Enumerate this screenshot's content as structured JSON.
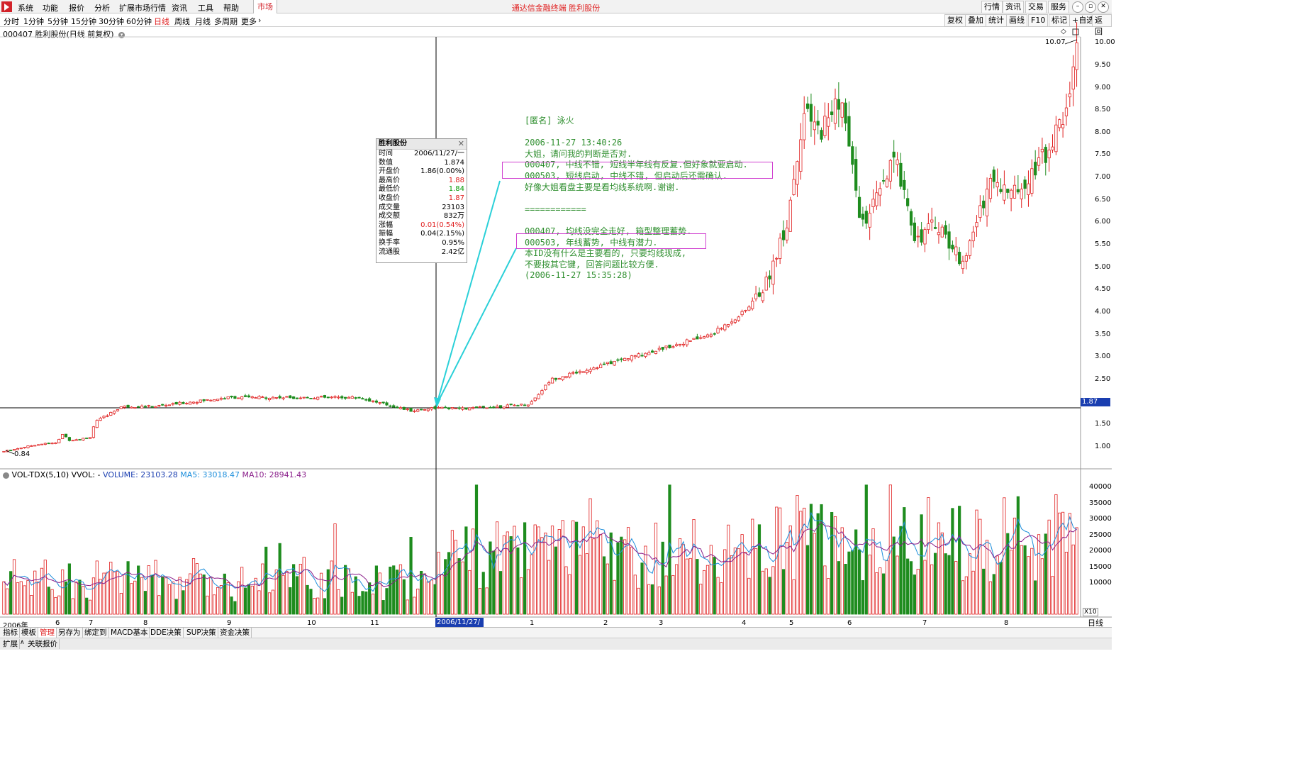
{
  "app": {
    "title": "通达信金融终端  胜利股份",
    "menu": [
      "系统",
      "功能",
      "报价",
      "分析",
      "扩展市场行情",
      "资讯",
      "工具",
      "帮助"
    ],
    "market_tab": "市场",
    "right_buttons": [
      "行情",
      "资讯",
      "交易",
      "服务"
    ],
    "window_buttons": [
      "–",
      "▫",
      "✕"
    ]
  },
  "periods": {
    "items": [
      "分时",
      "1分钟",
      "5分钟",
      "15分钟",
      "30分钟",
      "60分钟",
      "日线",
      "周线",
      "月线",
      "多周期",
      "更多"
    ],
    "active": "日线",
    "more_arrow": "›"
  },
  "toolbar_right": [
    "复权",
    "叠加",
    "统计",
    "画线",
    "F10",
    "标记",
    "+自选",
    "返回"
  ],
  "chart_header": "000407 胜利股份(日线 前复权)",
  "colors": {
    "up": "#e02020",
    "down": "#1e8c1e",
    "ma5": "#1e8fdc",
    "ma10": "#8a1e8a",
    "accent": "#1a3eb0",
    "comment": "#2f8f2f"
  },
  "hint_panel": {
    "title": "胜利股份",
    "rows": [
      {
        "label": "时间",
        "value": "2006/11/27/一",
        "color": "black"
      },
      {
        "label": "数值",
        "value": "1.874",
        "color": "black"
      },
      {
        "label": "开盘价",
        "value": "1.86(0.00%)",
        "color": "black"
      },
      {
        "label": "最高价",
        "value": "1.88",
        "color": "red"
      },
      {
        "label": "最低价",
        "value": "1.84",
        "color": "green"
      },
      {
        "label": "收盘价",
        "value": "1.87",
        "color": "red"
      },
      {
        "label": "成交量",
        "value": "23103",
        "color": "black"
      },
      {
        "label": "成交额",
        "value": "832万",
        "color": "black"
      },
      {
        "label": "涨幅",
        "value": "0.01(0.54%)",
        "color": "red"
      },
      {
        "label": "振幅",
        "value": "0.04(2.15%)",
        "color": "black"
      },
      {
        "label": "换手率",
        "value": "0.95%",
        "color": "black"
      },
      {
        "label": "流通股",
        "value": "2.42亿",
        "color": "black"
      }
    ]
  },
  "comment": {
    "lines": [
      "[匿名] 泳火",
      "",
      "2006-11-27 13:40:26",
      "大姐，请问我的判断是否对.",
      "000407, 中线不错, 短线半年线有反复.但好象就要启动.",
      "000503, 短线启动, 中线不错, 但启动后还需确认.",
      "好像大姐看盘主要是看均线系统啊.谢谢.",
      "",
      "============",
      "",
      "000407, 均线没完全走好, 箱型整理蓄势.",
      "000503, 年线蓄势, 中线有潜力.",
      "本ID没有什么是主要看的, 只要均线现成,",
      "不要按其它键, 回答问题比较方便.",
      "(2006-11-27 15:35:28)"
    ]
  },
  "price_axis": [
    "10.00",
    "9.50",
    "9.00",
    "8.50",
    "8.00",
    "7.50",
    "7.00",
    "6.50",
    "6.00",
    "5.50",
    "5.00",
    "4.50",
    "4.00",
    "3.50",
    "3.00",
    "2.50",
    "1.50",
    "1.00"
  ],
  "max_label": "10.07",
  "min_label": "0.84",
  "crosshair_price": "1.87",
  "crosshair_date": "2006/11/27/一",
  "volume": {
    "header_prefix": "VOL-TDX(5,10) VVOL: -",
    "volume_label": "VOLUME: 23103.28",
    "ma5_label": "MA5: 33018.47",
    "ma10_label": "MA10: 28941.43",
    "axis": [
      "40000",
      "35000",
      "30000",
      "25000",
      "20000",
      "15000",
      "10000"
    ],
    "unit": "X10"
  },
  "date_axis": [
    "2006年",
    "6",
    "7",
    "8",
    "9",
    "10",
    "11",
    "1",
    "2",
    "3",
    "4",
    "5",
    "6",
    "7",
    "8"
  ],
  "period_label": "日线",
  "bottom_tabs": [
    "指标",
    "模板",
    "管理",
    "另存为",
    "绑定到",
    "MACD基本",
    "DDE决策",
    "SUP决策",
    "资金决策"
  ],
  "bottom_active": "管理",
  "bottom_tabs2": [
    "扩展",
    "关联报价"
  ],
  "chart_data": {
    "type": "candlestick",
    "title": "000407 胜利股份(日线 前复权)",
    "price_range": [
      0.84,
      10.07
    ],
    "volume_range": [
      0,
      40000
    ],
    "price_path": [
      {
        "x": 0,
        "y": 0.9
      },
      {
        "x": 0.03,
        "y": 1.05
      },
      {
        "x": 0.05,
        "y": 1.1
      },
      {
        "x": 0.055,
        "y": 1.3
      },
      {
        "x": 0.06,
        "y": 1.15
      },
      {
        "x": 0.08,
        "y": 1.2
      },
      {
        "x": 0.085,
        "y": 1.55
      },
      {
        "x": 0.11,
        "y": 1.9
      },
      {
        "x": 0.14,
        "y": 1.9
      },
      {
        "x": 0.21,
        "y": 2.1
      },
      {
        "x": 0.33,
        "y": 2.1
      },
      {
        "x": 0.38,
        "y": 1.8
      },
      {
        "x": 0.4,
        "y": 1.87
      },
      {
        "x": 0.43,
        "y": 1.85
      },
      {
        "x": 0.49,
        "y": 1.95
      },
      {
        "x": 0.51,
        "y": 2.5
      },
      {
        "x": 0.54,
        "y": 2.7
      },
      {
        "x": 0.6,
        "y": 3.1
      },
      {
        "x": 0.66,
        "y": 3.5
      },
      {
        "x": 0.69,
        "y": 4.0
      },
      {
        "x": 0.71,
        "y": 4.6
      },
      {
        "x": 0.73,
        "y": 6.0
      },
      {
        "x": 0.745,
        "y": 8.4
      },
      {
        "x": 0.76,
        "y": 8.0
      },
      {
        "x": 0.78,
        "y": 8.8
      },
      {
        "x": 0.79,
        "y": 7.3
      },
      {
        "x": 0.8,
        "y": 5.9
      },
      {
        "x": 0.82,
        "y": 6.8
      },
      {
        "x": 0.83,
        "y": 7.4
      },
      {
        "x": 0.84,
        "y": 6.7
      },
      {
        "x": 0.85,
        "y": 5.6
      },
      {
        "x": 0.87,
        "y": 6.0
      },
      {
        "x": 0.89,
        "y": 5.2
      },
      {
        "x": 0.9,
        "y": 5.4
      },
      {
        "x": 0.905,
        "y": 5.9
      },
      {
        "x": 0.92,
        "y": 7.0
      },
      {
        "x": 0.94,
        "y": 6.6
      },
      {
        "x": 0.97,
        "y": 7.5
      },
      {
        "x": 0.99,
        "y": 8.4
      },
      {
        "x": 1.0,
        "y": 10.07
      }
    ]
  }
}
